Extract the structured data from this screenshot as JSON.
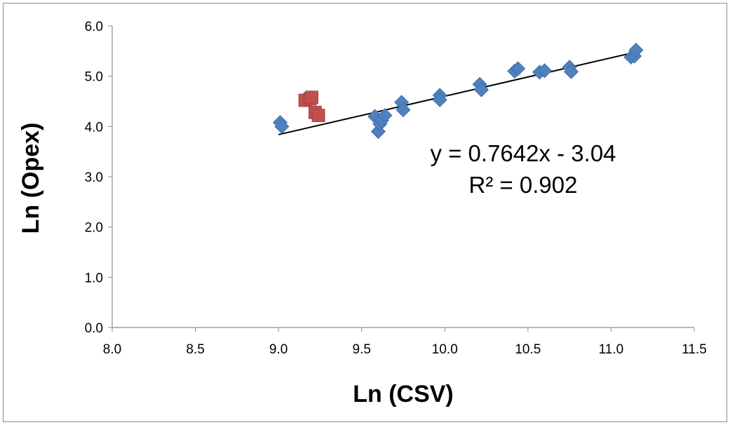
{
  "chart_data": {
    "type": "scatter",
    "title": "",
    "xlabel": "Ln (CSV)",
    "ylabel": "Ln (Opex)",
    "xlim": [
      8.0,
      11.5
    ],
    "ylim": [
      0.0,
      6.0
    ],
    "x_ticks": [
      "8.0",
      "8.5",
      "9.0",
      "9.5",
      "10.0",
      "10.5",
      "11.0",
      "11.5"
    ],
    "y_ticks": [
      "0.0",
      "1.0",
      "2.0",
      "3.0",
      "4.0",
      "5.0",
      "6.0"
    ],
    "grid": false,
    "legend": "none",
    "series": [
      {
        "marker": "diamond",
        "color": "#4F81BD",
        "points": [
          [
            9.01,
            4.08
          ],
          [
            9.02,
            4.0
          ],
          [
            9.58,
            4.2
          ],
          [
            9.6,
            3.9
          ],
          [
            9.61,
            4.05
          ],
          [
            9.62,
            4.12
          ],
          [
            9.64,
            4.22
          ],
          [
            9.74,
            4.48
          ],
          [
            9.75,
            4.33
          ],
          [
            9.97,
            4.62
          ],
          [
            9.97,
            4.53
          ],
          [
            10.21,
            4.84
          ],
          [
            10.22,
            4.73
          ],
          [
            10.42,
            5.1
          ],
          [
            10.44,
            5.15
          ],
          [
            10.57,
            5.08
          ],
          [
            10.6,
            5.11
          ],
          [
            10.75,
            5.18
          ],
          [
            10.76,
            5.09
          ],
          [
            11.12,
            5.38
          ],
          [
            11.14,
            5.4
          ],
          [
            11.15,
            5.52
          ]
        ]
      },
      {
        "marker": "square",
        "color": "#C0504D",
        "points": [
          [
            9.16,
            4.52
          ],
          [
            9.19,
            4.55
          ],
          [
            9.2,
            4.58
          ],
          [
            9.22,
            4.28
          ],
          [
            9.24,
            4.22
          ]
        ]
      }
    ],
    "trendline": {
      "slope": 0.7642,
      "intercept": -3.04,
      "x_range": [
        9.0,
        11.15
      ],
      "color": "#000000",
      "equation_label": "y = 0.7642x - 3.04",
      "r2_label": "R² = 0.902"
    }
  }
}
